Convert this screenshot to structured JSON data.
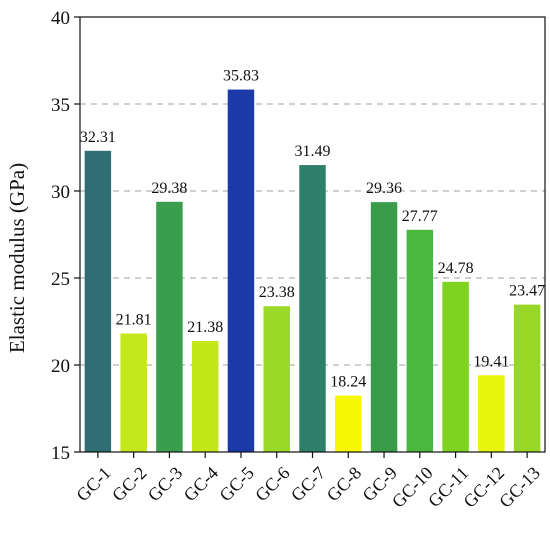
{
  "chart_data": {
    "type": "bar",
    "title": "",
    "xlabel": "",
    "ylabel": "Elastic modulus (GPa)",
    "ylim": [
      15,
      40
    ],
    "yticks": [
      15,
      20,
      25,
      30,
      35,
      40
    ],
    "grid": "horizontal dashed at 20, 25, 30, 35",
    "categories": [
      "GC-1",
      "GC-2",
      "GC-3",
      "GC-4",
      "GC-5",
      "GC-6",
      "GC-7",
      "GC-8",
      "GC-9",
      "GC-10",
      "GC-11",
      "GC-12",
      "GC-13"
    ],
    "values": [
      32.31,
      21.81,
      29.38,
      21.38,
      35.83,
      23.38,
      31.49,
      18.24,
      29.36,
      27.77,
      24.78,
      19.41,
      23.47
    ],
    "data_labels": [
      "32.31",
      "21.81",
      "29.38",
      "21.38",
      "35.83",
      "23.38",
      "31.49",
      "18.24",
      "29.36",
      "27.77",
      "24.78",
      "19.41",
      "23.47"
    ],
    "colors": [
      "#2e6e74",
      "#c5e81c",
      "#3a9e4e",
      "#c3e81a",
      "#1b3aa8",
      "#9ad927",
      "#2f7f6a",
      "#f6f700",
      "#3a9c4a",
      "#4ab73e",
      "#7dd320",
      "#e8f40c",
      "#97d827"
    ]
  }
}
